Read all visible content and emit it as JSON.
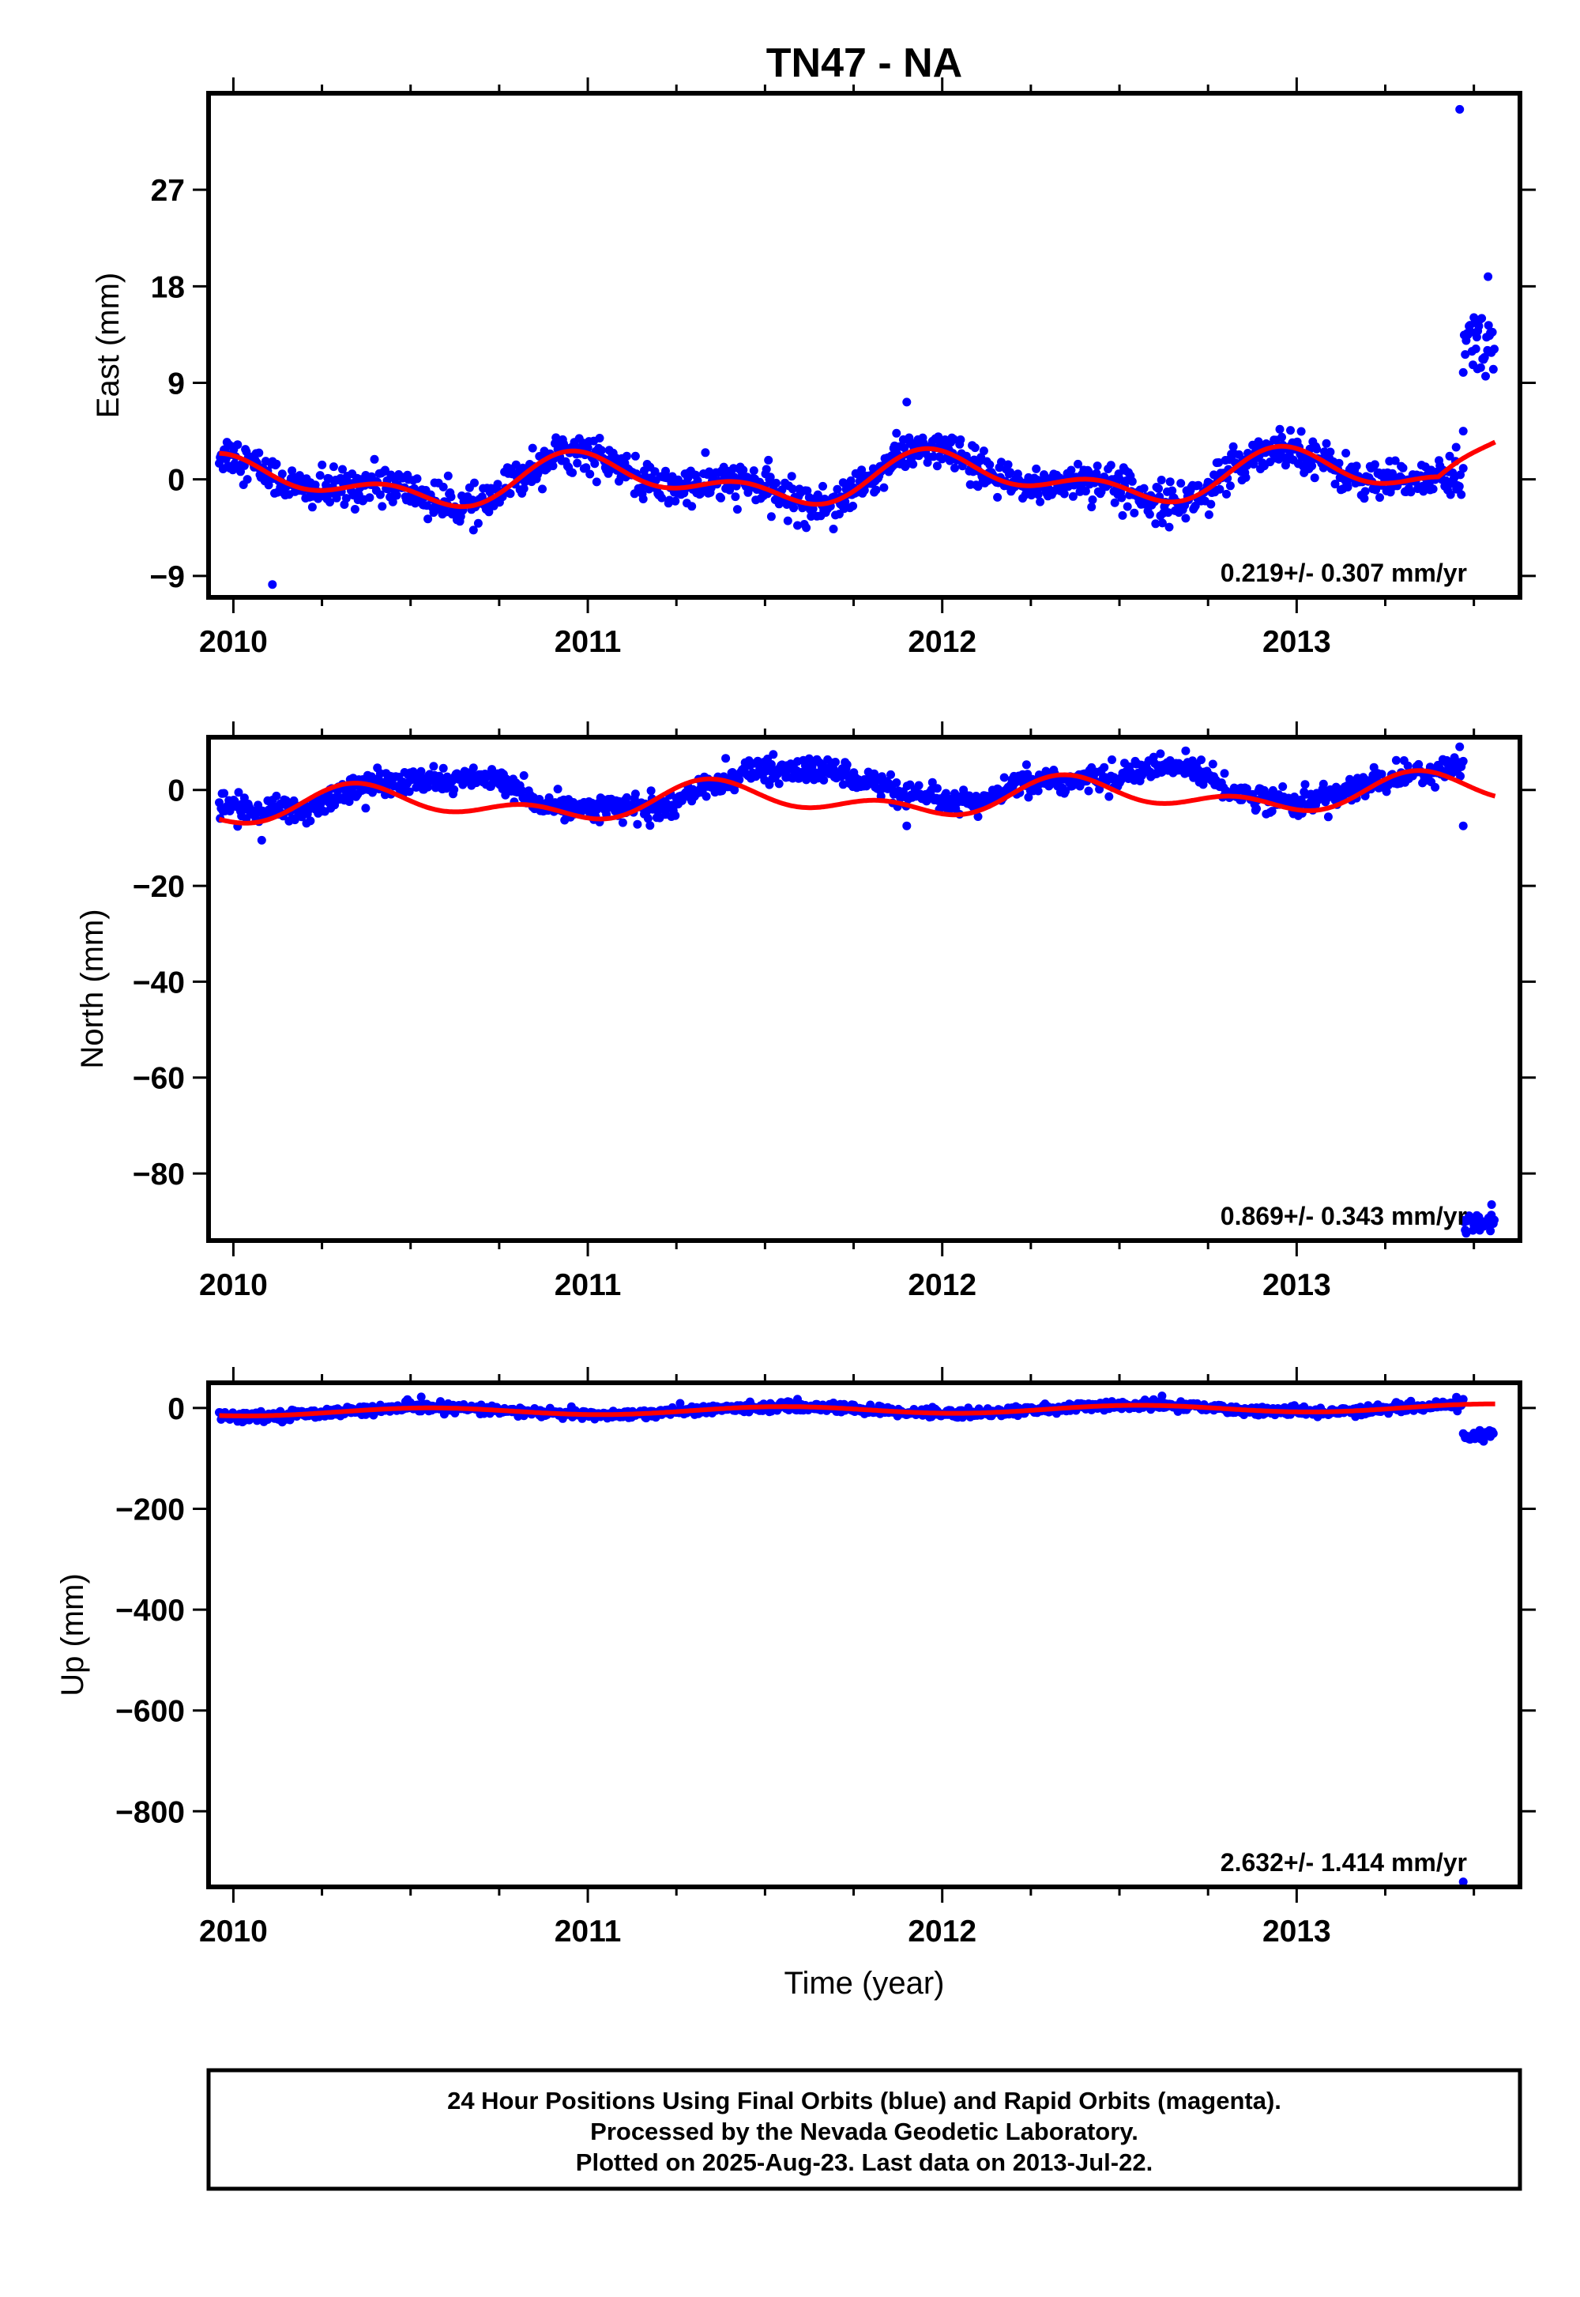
{
  "title": "TN47 - NA",
  "footer": {
    "line1": "24 Hour Positions Using Final Orbits (blue) and Rapid Orbits (magenta).",
    "line2": "Processed by the Nevada Geodetic Laboratory.",
    "line3": "Plotted on 2025-Aug-23. Last data on 2013-Jul-22."
  },
  "colors": {
    "observations": "#0000ff",
    "model": "#ff0000",
    "frame": "#000000"
  },
  "chart_data": [
    {
      "type": "scatter",
      "ylabel": "East (mm)",
      "xlabel": "",
      "xlim": [
        2009.93,
        2013.63
      ],
      "ylim": [
        -11,
        36
      ],
      "yticks": [
        -9,
        0,
        9,
        18,
        27
      ],
      "xticks": [
        2010,
        2011,
        2012,
        2013
      ],
      "rate_label": "0.219+/- 0.307 mm/yr",
      "series": [
        {
          "name": "Final Orbits",
          "marker": "dot",
          "x_range": [
            2009.96,
            2013.47
          ],
          "model": {
            "offset": 0.0,
            "trend": 0.22,
            "annual": [
              0.2,
              1.7
            ],
            "semiannual": [
              -0.9,
              0.9
            ],
            "noise": 0.9
          },
          "extra_points": [
            [
              2010.11,
              -9.8
            ],
            [
              2011.9,
              7.2
            ],
            [
              2013.46,
              34.5
            ],
            [
              2013.47,
              4.5
            ],
            [
              2013.45,
              3.0
            ]
          ]
        },
        {
          "name": "Rapid Orbits",
          "marker": "dot",
          "x_range": [
            2013.47,
            2013.56
          ],
          "constant": 13.0,
          "noise": 1.6,
          "extra_points": [
            [
              2013.54,
              18.9
            ],
            [
              2013.51,
              10.3
            ]
          ]
        }
      ],
      "fit_line": {
        "x_range": [
          2009.96,
          2013.56
        ],
        "model": {
          "offset": 0.0,
          "trend": 0.22,
          "annual": [
            0.2,
            1.7
          ],
          "semiannual": [
            -0.9,
            0.9
          ],
          "tail_rise": 4.7
        }
      }
    },
    {
      "type": "scatter",
      "ylabel": "North (mm)",
      "xlabel": "",
      "xlim": [
        2009.93,
        2013.63
      ],
      "ylim": [
        -94,
        11
      ],
      "yticks": [
        -80,
        -60,
        -40,
        -20,
        0
      ],
      "xticks": [
        2010,
        2011,
        2012,
        2013
      ],
      "rate_label": "0.869+/- 0.343 mm/yr",
      "series": [
        {
          "name": "Final Orbits",
          "marker": "dot",
          "x_range": [
            2009.96,
            2013.47
          ],
          "piecewise": [
            [
              2009.96,
              -3.5
            ],
            [
              2010.2,
              -4.5
            ],
            [
              2010.35,
              1.0
            ],
            [
              2010.75,
              2.5
            ],
            [
              2010.85,
              -3.0
            ],
            [
              2011.2,
              -4.0
            ],
            [
              2011.35,
              1.0
            ],
            [
              2011.45,
              4.0
            ],
            [
              2011.7,
              4.0
            ],
            [
              2011.95,
              -2.0
            ],
            [
              2012.1,
              -3.0
            ],
            [
              2012.2,
              1.0
            ],
            [
              2012.4,
              2.0
            ],
            [
              2012.55,
              4.0
            ],
            [
              2012.7,
              5.0
            ],
            [
              2012.8,
              0.0
            ],
            [
              2013.0,
              -3.0
            ],
            [
              2013.1,
              -1.0
            ],
            [
              2013.3,
              3.0
            ],
            [
              2013.47,
              5.0
            ]
          ],
          "noise": 1.3,
          "extra_points": [
            [
              2010.08,
              -10.5
            ],
            [
              2011.9,
              -7.5
            ],
            [
              2013.47,
              -7.5
            ],
            [
              2013.46,
              9.0
            ]
          ]
        },
        {
          "name": "Rapid Orbits",
          "marker": "dot",
          "x_range": [
            2013.47,
            2013.56
          ],
          "constant": -90.0,
          "noise": 1.3,
          "extra_points": [
            [
              2013.55,
              -86.5
            ]
          ]
        }
      ],
      "fit_line": {
        "x_range": [
          2009.96,
          2013.56
        ],
        "model": {
          "offset": -2.0,
          "trend": 0.87,
          "annual": [
            1.7,
            -2.0
          ],
          "semiannual": [
            -1.8,
            -1.2
          ]
        }
      }
    },
    {
      "type": "scatter",
      "ylabel": "Up (mm)",
      "xlabel": "Time (year)",
      "xlim": [
        2009.93,
        2013.63
      ],
      "ylim": [
        -950,
        50
      ],
      "yticks": [
        -800,
        -600,
        -400,
        -200,
        0
      ],
      "xticks": [
        2010,
        2011,
        2012,
        2013
      ],
      "rate_label": "2.632+/- 1.414 mm/yr",
      "series": [
        {
          "name": "Final Orbits",
          "marker": "dot",
          "x_range": [
            2009.96,
            2013.47
          ],
          "model": {
            "offset": -4.0,
            "trend": 2.63,
            "annual": [
              -2.0,
              -7.0
            ],
            "semiannual": [
              0.0,
              0.0
            ],
            "noise": 4.5
          },
          "extra_points": [
            [
              2010.53,
              22
            ],
            [
              2012.62,
              24
            ],
            [
              2013.47,
              -940
            ]
          ]
        },
        {
          "name": "Rapid Orbits",
          "marker": "dot",
          "x_range": [
            2013.47,
            2013.56
          ],
          "constant": -55.0,
          "noise": 5.5
        }
      ],
      "fit_line": {
        "x_range": [
          2009.96,
          2013.56
        ],
        "model": {
          "offset": -4.0,
          "trend": 2.63,
          "annual": [
            -2.0,
            -7.0
          ],
          "semiannual": [
            0.0,
            0.0
          ]
        }
      }
    }
  ]
}
